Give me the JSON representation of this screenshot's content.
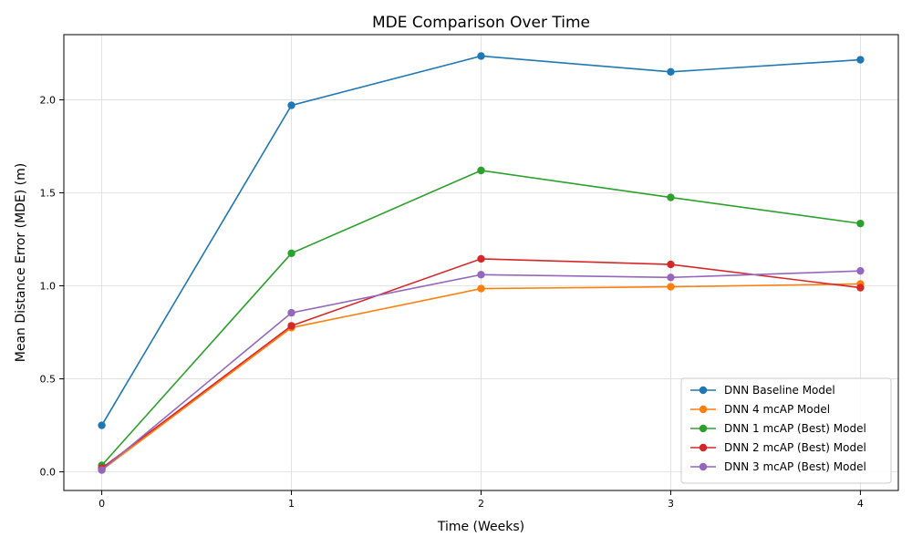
{
  "chart_data": {
    "type": "line",
    "title": "MDE Comparison Over Time",
    "xlabel": "Time (Weeks)",
    "ylabel": "Mean Distance Error (MDE) (m)",
    "x": [
      0,
      1,
      2,
      3,
      4
    ],
    "xticks": [
      "0",
      "1",
      "2",
      "3",
      "4"
    ],
    "yticks": [
      "0.0",
      "0.5",
      "1.0",
      "1.5",
      "2.0"
    ],
    "xlim": [
      -0.2,
      4.2
    ],
    "ylim": [
      -0.1,
      2.35
    ],
    "grid": true,
    "legend_position": "lower-right",
    "series": [
      {
        "name": "DNN Baseline Model",
        "color": "#1f77b4",
        "values": [
          0.25,
          1.97,
          2.235,
          2.15,
          2.215
        ]
      },
      {
        "name": "DNN 4 mcAP Model",
        "color": "#ff7f0e",
        "values": [
          0.01,
          0.775,
          0.985,
          0.995,
          1.01
        ]
      },
      {
        "name": "DNN 1 mcAP (Best) Model",
        "color": "#2ca02c",
        "values": [
          0.035,
          1.175,
          1.62,
          1.475,
          1.335
        ]
      },
      {
        "name": "DNN 2 mcAP (Best) Model",
        "color": "#d62728",
        "values": [
          0.02,
          0.785,
          1.145,
          1.115,
          0.99
        ]
      },
      {
        "name": "DNN 3 mcAP (Best) Model",
        "color": "#9467bd",
        "values": [
          0.01,
          0.855,
          1.06,
          1.045,
          1.08
        ]
      }
    ]
  }
}
